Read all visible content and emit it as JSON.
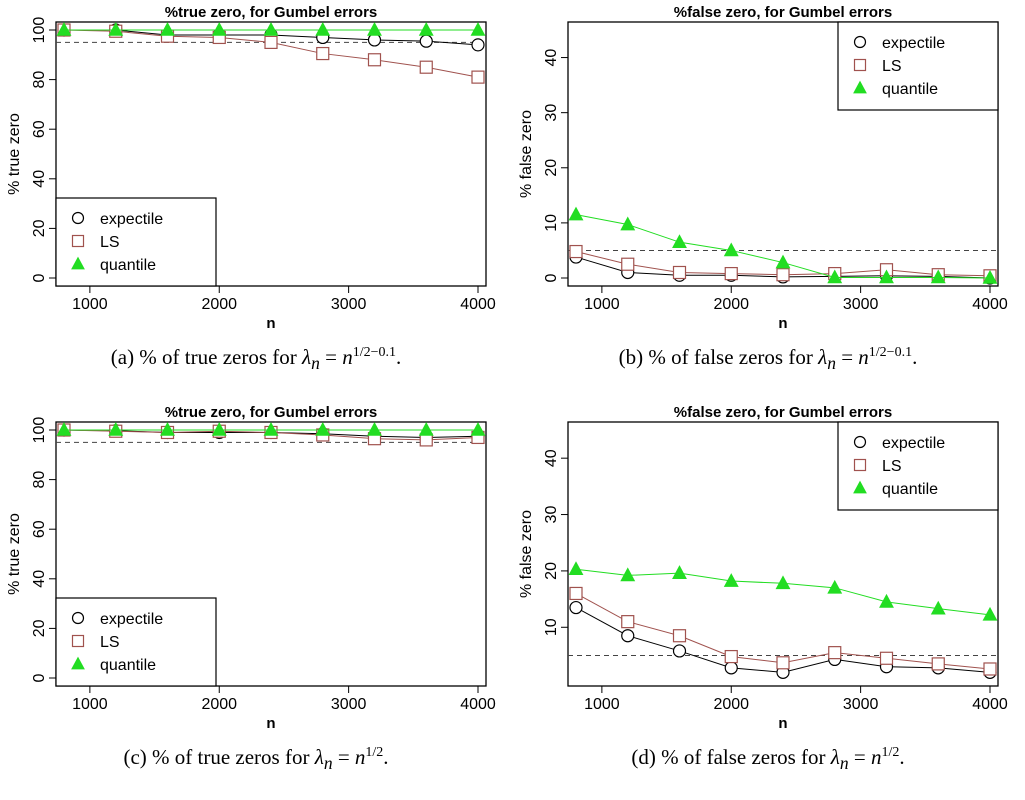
{
  "styles": {
    "expectile": {
      "marker": "circle",
      "color": "#000000"
    },
    "LS": {
      "marker": "square",
      "color": "#a0524e"
    },
    "quantile": {
      "marker": "triangle",
      "color": "#22dd22"
    }
  },
  "chart_data": [
    {
      "type": "line",
      "title": "%true zero, for Gumbel errors",
      "xlabel": "n",
      "ylabel": "% true zero",
      "xlim": [
        800,
        4000
      ],
      "ylim": [
        0,
        100
      ],
      "xticks": [
        1000,
        2000,
        3000,
        4000
      ],
      "yticks": [
        0,
        20,
        40,
        60,
        80,
        100
      ],
      "hline": 95,
      "legend": "bottom-left",
      "x": [
        800,
        1200,
        1600,
        2000,
        2400,
        2800,
        3200,
        3600,
        4000
      ],
      "series": [
        {
          "name": "expectile",
          "values": [
            100,
            100,
            98,
            98,
            98,
            97,
            96,
            95.5,
            94
          ]
        },
        {
          "name": "LS",
          "values": [
            100,
            99.5,
            97.5,
            97,
            95,
            90.5,
            88,
            85,
            81
          ]
        },
        {
          "name": "quantile",
          "values": [
            100,
            100,
            100,
            100,
            100,
            100,
            100,
            100,
            100
          ]
        }
      ],
      "caption": {
        "pre": "(a) % of true zeros for ",
        "sym": "λ",
        "sub": "n",
        "eq": " = ",
        "base": "n",
        "exp": "1/2−0.1",
        "post": "."
      }
    },
    {
      "type": "line",
      "title": "%false zero,  for Gumbel errors",
      "xlabel": "n",
      "ylabel": "% false zero",
      "xlim": [
        800,
        4000
      ],
      "ylim": [
        0,
        45
      ],
      "xticks": [
        1000,
        2000,
        3000,
        4000
      ],
      "yticks": [
        0,
        10,
        20,
        30,
        40
      ],
      "hline": 5,
      "legend": "top-right",
      "x": [
        800,
        1200,
        1600,
        2000,
        2400,
        2800,
        3200,
        3600,
        4000
      ],
      "series": [
        {
          "name": "expectile",
          "values": [
            3.8,
            1,
            0.5,
            0.5,
            0.2,
            0.3,
            0.4,
            0.3,
            0
          ]
        },
        {
          "name": "LS",
          "values": [
            4.8,
            2.5,
            1,
            0.8,
            0.6,
            0.8,
            1.5,
            0.6,
            0.4
          ]
        },
        {
          "name": "quantile",
          "values": [
            11.5,
            9.7,
            6.5,
            5,
            2.8,
            0.1,
            0.1,
            0.1,
            0
          ]
        }
      ],
      "caption": {
        "pre": "(b) % of false zeros for ",
        "sym": "λ",
        "sub": "n",
        "eq": " = ",
        "base": "n",
        "exp": "1/2−0.1",
        "post": "."
      }
    },
    {
      "type": "line",
      "title": "%true zero, for Gumbel errors",
      "xlabel": "n",
      "ylabel": "% true zero",
      "xlim": [
        800,
        4000
      ],
      "ylim": [
        0,
        100
      ],
      "xticks": [
        1000,
        2000,
        3000,
        4000
      ],
      "yticks": [
        0,
        20,
        40,
        60,
        80,
        100
      ],
      "hline": 95,
      "legend": "bottom-left",
      "x": [
        800,
        1200,
        1600,
        2000,
        2400,
        2800,
        3200,
        3600,
        4000
      ],
      "series": [
        {
          "name": "expectile",
          "values": [
            100,
            99.7,
            99,
            99,
            99,
            98.5,
            97.5,
            97,
            97.5
          ]
        },
        {
          "name": "LS",
          "values": [
            100,
            99.5,
            99,
            99.5,
            99,
            98,
            96.5,
            96,
            97
          ]
        },
        {
          "name": "quantile",
          "values": [
            100,
            100,
            100,
            100,
            100,
            100,
            100,
            100,
            100
          ]
        }
      ],
      "caption": {
        "pre": "(c) % of true zeros for ",
        "sym": "λ",
        "sub": "n",
        "eq": " = ",
        "base": "n",
        "exp": "1/2",
        "post": "."
      }
    },
    {
      "type": "line",
      "title": "%false zero,  for Gumbel errors",
      "xlabel": "n",
      "ylabel": "% false zero",
      "xlim": [
        800,
        4000
      ],
      "ylim": [
        1,
        45
      ],
      "xticks": [
        1000,
        2000,
        3000,
        4000
      ],
      "yticks": [
        10,
        20,
        30,
        40
      ],
      "hline": 5,
      "legend": "top-right",
      "x": [
        800,
        1200,
        1600,
        2000,
        2400,
        2800,
        3200,
        3600,
        4000
      ],
      "series": [
        {
          "name": "expectile",
          "values": [
            13.5,
            8.5,
            5.8,
            2.8,
            2,
            4.3,
            3,
            2.8,
            2
          ]
        },
        {
          "name": "LS",
          "values": [
            16,
            11,
            8.5,
            4.8,
            3.7,
            5.5,
            4.5,
            3.5,
            2.6
          ]
        },
        {
          "name": "quantile",
          "values": [
            20.3,
            19.2,
            19.6,
            18.2,
            17.8,
            17,
            14.5,
            13.3,
            12.2
          ]
        }
      ],
      "caption": {
        "pre": "(d) % of false zeros for ",
        "sym": "λ",
        "sub": "n",
        "eq": " = ",
        "base": "n",
        "exp": "1/2",
        "post": "."
      }
    }
  ]
}
